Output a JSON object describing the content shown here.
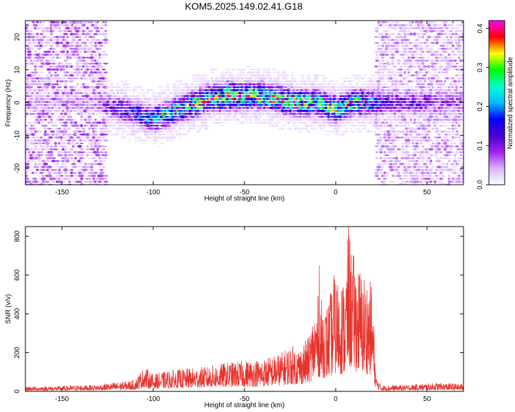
{
  "figure": {
    "title": "KOM5.2025.149.02.41.G18"
  },
  "chart_data": [
    {
      "type": "heatmap",
      "title": "KOM5.2025.149.02.41.G18",
      "xlabel": "Height of straight line (km)",
      "ylabel": "Frequency (Hz)",
      "xlim": [
        -170,
        70
      ],
      "ylim": [
        -25,
        25
      ],
      "xticks": [
        -150,
        -100,
        -50,
        0,
        50
      ],
      "xtick_labels": [
        "-150",
        "-100",
        "-50",
        "0",
        "50"
      ],
      "yticks": [
        -20,
        -10,
        0,
        10,
        20
      ],
      "ytick_labels": [
        "-20",
        "-10",
        "0",
        "10",
        "20"
      ],
      "colorbar": {
        "label": "Normalized spectral amplitude",
        "range": [
          0.0,
          0.42
        ],
        "ticks": [
          0.0,
          0.1,
          0.2,
          0.3,
          0.4
        ],
        "tick_labels": [
          "0.0",
          "0.1",
          "0.2",
          "0.3",
          "0.4"
        ],
        "colormap": [
          "#ffffff",
          "#d9b3ff",
          "#a020f0",
          "#4b00d0",
          "#0000ff",
          "#00bfff",
          "#00ffcc",
          "#00ff00",
          "#ffff00",
          "#ff0000",
          "#ff00ff"
        ]
      },
      "band": {
        "x": [
          -170,
          -150,
          -130,
          -125,
          -110,
          -100,
          -90,
          -80,
          -70,
          -60,
          -50,
          -40,
          -30,
          -20,
          -10,
          0,
          10,
          20,
          25,
          40,
          50,
          60,
          70
        ],
        "center_freq": [
          0,
          0,
          0,
          -1,
          -3,
          -5,
          -3,
          -1,
          1,
          2,
          2,
          2,
          1,
          0,
          0,
          -2,
          0,
          0,
          0,
          0,
          0,
          0,
          0
        ],
        "peak_amplitude": [
          0.05,
          0.05,
          0.06,
          0.12,
          0.18,
          0.22,
          0.25,
          0.3,
          0.35,
          0.38,
          0.36,
          0.34,
          0.35,
          0.32,
          0.3,
          0.32,
          0.3,
          0.22,
          0.15,
          0.12,
          0.12,
          0.1,
          0.1
        ]
      },
      "noise_regions": [
        {
          "x_range": [
            -170,
            -125
          ],
          "level": 0.05
        },
        {
          "x_range": [
            22,
            70
          ],
          "level": 0.04
        }
      ]
    },
    {
      "type": "line",
      "xlabel": "Height of straight line (km)",
      "ylabel": "SNR (v/v)",
      "xlim": [
        -170,
        70
      ],
      "ylim": [
        0,
        850
      ],
      "xticks": [
        -150,
        -100,
        -50,
        0,
        50
      ],
      "xtick_labels": [
        "-150",
        "-100",
        "-50",
        "0",
        "50"
      ],
      "yticks": [
        0,
        200,
        400,
        600,
        800
      ],
      "ytick_labels": [
        "0",
        "200",
        "400",
        "600",
        "800"
      ],
      "color": "#e8332d",
      "envelope": {
        "x": [
          -170,
          -150,
          -130,
          -110,
          -105,
          -100,
          -90,
          -80,
          -70,
          -60,
          -50,
          -40,
          -30,
          -25,
          -20,
          -15,
          -10,
          -5,
          0,
          5,
          7,
          10,
          15,
          20,
          22,
          25,
          40,
          55,
          70
        ],
        "y": [
          25,
          28,
          35,
          60,
          130,
          90,
          110,
          120,
          130,
          150,
          160,
          170,
          200,
          240,
          230,
          280,
          500,
          450,
          600,
          580,
          850,
          700,
          620,
          560,
          80,
          30,
          35,
          45,
          40
        ]
      },
      "peaks": [
        {
          "x": 7,
          "y": 850
        },
        {
          "x": -9,
          "y": 650
        },
        {
          "x": -1,
          "y": 600
        }
      ]
    }
  ]
}
